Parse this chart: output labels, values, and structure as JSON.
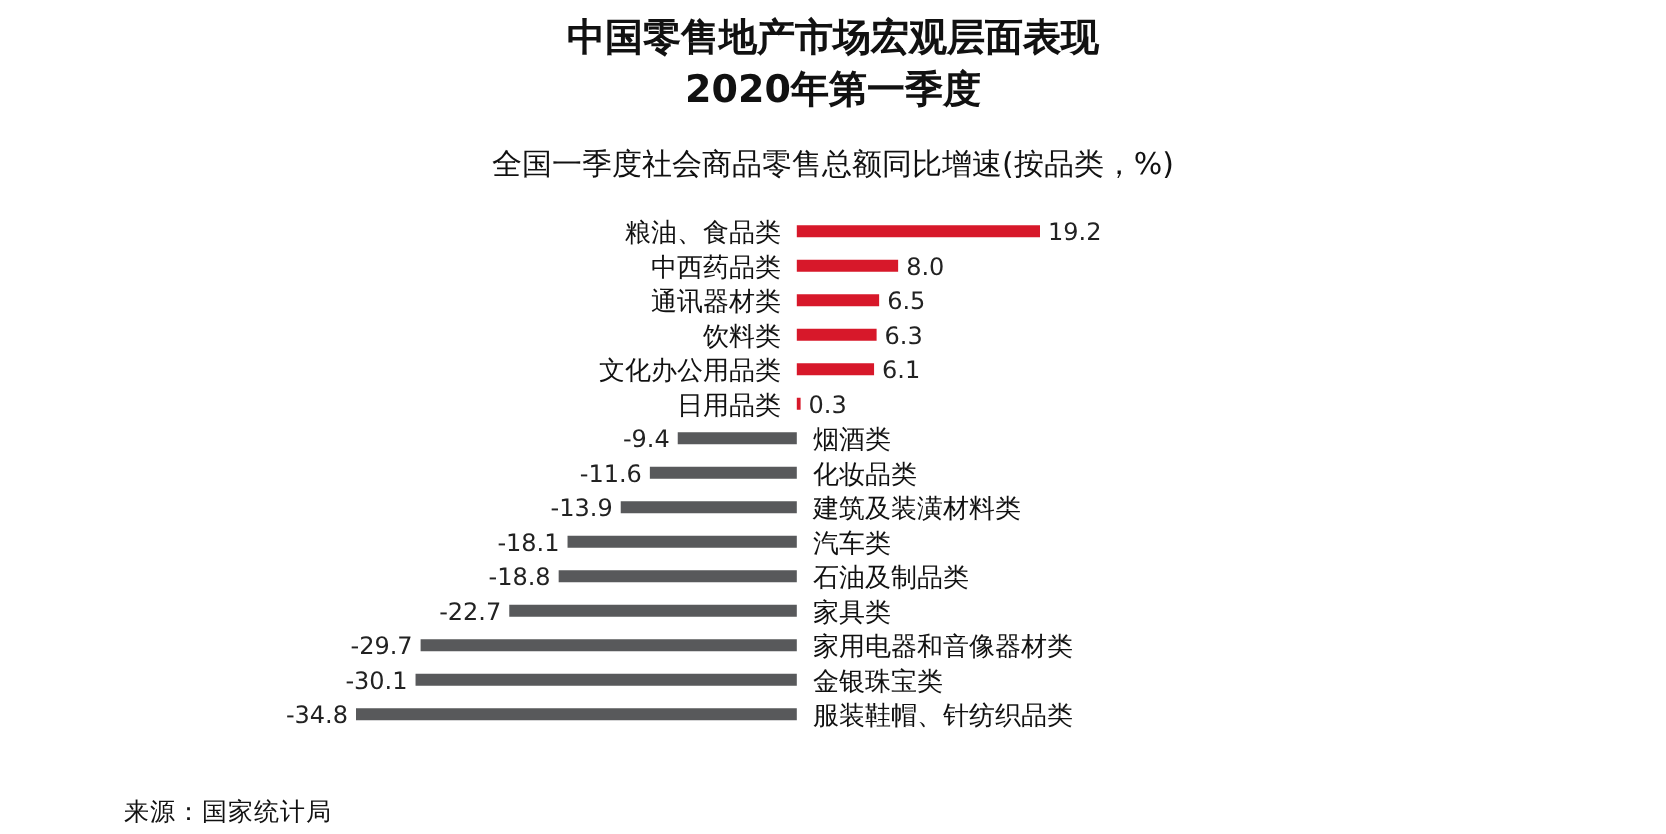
{
  "chart_data": {
    "type": "bar",
    "orientation": "horizontal",
    "title": "中国零售地产市场宏观层面表现",
    "subtitle": "2020年第一季度",
    "annotations": [
      "全国一季度社会商品零售总额同比增速(按品类，%)",
      "来源：国家统计局"
    ],
    "categories": [
      "粮油、食品类",
      "中西药品类",
      "通讯器材类",
      "饮料类",
      "文化办公用品类",
      "日用品类",
      "烟酒类",
      "化妆品类",
      "建筑及装潢材料类",
      "汽车类",
      "石油及制品类",
      "家具类",
      "家用电器和音像器材类",
      "金银珠宝类",
      "服装鞋帽、针纺织品类"
    ],
    "values": [
      19.2,
      8.0,
      6.5,
      6.3,
      6.1,
      0.3,
      -9.4,
      -11.6,
      -13.9,
      -18.1,
      -18.8,
      -22.7,
      -29.7,
      -30.1,
      -34.8
    ],
    "value_labels": [
      "19.2",
      "8.0",
      "6.5",
      "6.3",
      "6.1",
      "0.3",
      "-9.4",
      "-11.6",
      "-13.9",
      "-18.1",
      "-18.8",
      "-22.7",
      "-29.7",
      "-30.1",
      "-34.8"
    ],
    "colors": [
      "#d7182a",
      "#d7182a",
      "#d7182a",
      "#d7182a",
      "#d7182a",
      "#d7182a",
      "#58595b",
      "#58595b",
      "#58595b",
      "#58595b",
      "#58595b",
      "#58595b",
      "#58595b",
      "#58595b",
      "#58595b"
    ]
  }
}
